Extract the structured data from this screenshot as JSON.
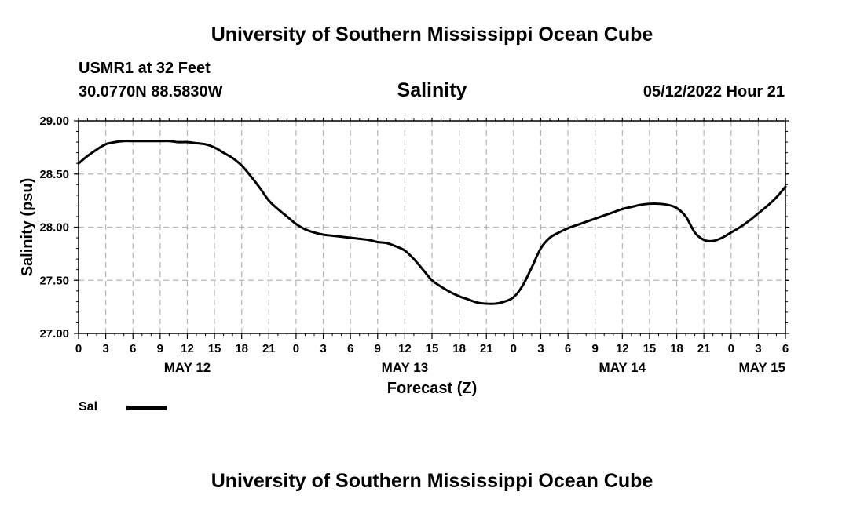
{
  "header": {
    "main_title": "University of Southern Mississippi Ocean Cube",
    "station": "USMR1 at 32 Feet",
    "coordinates": "30.0770N  88.5830W",
    "timestamp": "05/12/2022 Hour 21",
    "footer_title": "University of Southern Mississippi Ocean Cube"
  },
  "legend": {
    "label": "Sal"
  },
  "chart_data": {
    "type": "line",
    "title": "Salinity",
    "xlabel": "Forecast (Z)",
    "ylabel": "Salinity (psu)",
    "ylim": [
      27.0,
      29.0
    ],
    "xlim": [
      0,
      78
    ],
    "x_unit": "hours since May 12 00Z",
    "grid": true,
    "y_ticks": [
      "27.00",
      "27.50",
      "28.00",
      "28.50",
      "29.00"
    ],
    "y_tick_values": [
      27.0,
      27.5,
      28.0,
      28.5,
      29.0
    ],
    "x_tick_labels": [
      "0",
      "3",
      "6",
      "9",
      "12",
      "15",
      "18",
      "21",
      "0",
      "3",
      "6",
      "9",
      "12",
      "15",
      "18",
      "21",
      "0",
      "3",
      "6",
      "9",
      "12",
      "15",
      "18",
      "21",
      "0",
      "3",
      "6"
    ],
    "date_labels": [
      {
        "label": "MAY 12",
        "hour": 12
      },
      {
        "label": "MAY 13",
        "hour": 36
      },
      {
        "label": "MAY 14",
        "hour": 60
      },
      {
        "label": "MAY 15",
        "hour": 78
      }
    ],
    "series": [
      {
        "name": "Sal",
        "color": "#000000",
        "x": [
          0,
          1,
          2,
          3,
          4,
          5,
          6,
          7,
          8,
          9,
          10,
          11,
          12,
          13,
          14,
          15,
          16,
          17,
          18,
          19,
          20,
          21,
          22,
          23,
          24,
          25,
          26,
          27,
          28,
          29,
          30,
          31,
          32,
          33,
          34,
          35,
          36,
          37,
          38,
          39,
          40,
          41,
          42,
          43,
          44,
          45,
          46,
          47,
          48,
          49,
          50,
          51,
          52,
          53,
          54,
          55,
          56,
          57,
          58,
          59,
          60,
          61,
          62,
          63,
          64,
          65,
          66,
          67,
          68,
          69,
          70,
          71,
          72,
          73,
          74,
          75,
          76,
          77,
          78
        ],
        "values": [
          28.6,
          28.67,
          28.73,
          28.78,
          28.8,
          28.81,
          28.81,
          28.81,
          28.81,
          28.81,
          28.81,
          28.8,
          28.8,
          28.79,
          28.78,
          28.75,
          28.7,
          28.65,
          28.58,
          28.48,
          28.37,
          28.25,
          28.17,
          28.1,
          28.03,
          27.98,
          27.95,
          27.93,
          27.92,
          27.91,
          27.9,
          27.89,
          27.88,
          27.86,
          27.85,
          27.82,
          27.78,
          27.7,
          27.6,
          27.5,
          27.44,
          27.39,
          27.35,
          27.32,
          27.29,
          27.28,
          27.28,
          27.3,
          27.34,
          27.45,
          27.62,
          27.8,
          27.9,
          27.95,
          27.99,
          28.02,
          28.05,
          28.08,
          28.11,
          28.14,
          28.17,
          28.19,
          28.21,
          28.22,
          28.22,
          28.21,
          28.18,
          28.1,
          27.95,
          27.88,
          27.87,
          27.9,
          27.95,
          28.0,
          28.06,
          28.13,
          28.2,
          28.28,
          28.38
        ]
      }
    ]
  }
}
